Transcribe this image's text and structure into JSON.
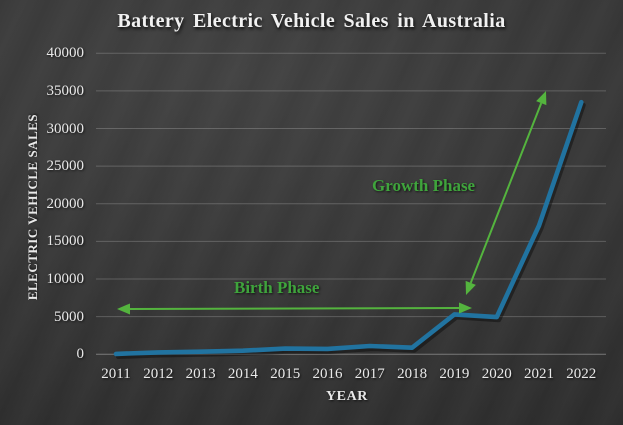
{
  "title": "Battery Electric Vehicle Sales in Australia",
  "axes": {
    "y_label": "ELECTRIC VEHICLE SALES",
    "x_label": "YEAR",
    "y_ticks": [
      "40000",
      "35000",
      "30000",
      "25000",
      "20000",
      "15000",
      "10000",
      "5000",
      "0"
    ],
    "x_ticks": [
      "2011",
      "2012",
      "2013",
      "2014",
      "2015",
      "2016",
      "2017",
      "2018",
      "2019",
      "2020",
      "2021",
      "2022"
    ]
  },
  "annotations": {
    "birth_phase": "Birth Phase",
    "growth_phase": "Growth Phase"
  },
  "colors": {
    "line": "#2173a0",
    "arrow_green": "#54b43e",
    "text_green": "#3fa43c",
    "axis_text": "#e9e9e9",
    "title_text": "#f1f1f1"
  },
  "chart_data": {
    "type": "line",
    "title": "Battery Electric Vehicle Sales in Australia",
    "xlabel": "YEAR",
    "ylabel": "ELECTRIC VEHICLE SALES",
    "x": [
      2011,
      2012,
      2013,
      2014,
      2015,
      2016,
      2017,
      2018,
      2019,
      2020,
      2021,
      2022
    ],
    "series": [
      {
        "name": "Battery electric vehicle sales",
        "values": [
          49,
          250,
          350,
          480,
          760,
          720,
          1100,
          880,
          5300,
          4950,
          17100,
          33500
        ]
      }
    ],
    "ylim": [
      0,
      40000
    ],
    "y_tick_step": 5000,
    "grid": true,
    "legend": false,
    "annotations": [
      {
        "text": "Birth Phase",
        "type": "double-headed-arrow",
        "direction": "horizontal",
        "from_year": 2011,
        "to_year": 2019
      },
      {
        "text": "Growth Phase",
        "type": "double-headed-arrow",
        "direction": "diagonal",
        "from_year": 2019,
        "to_year": 2022
      }
    ]
  }
}
